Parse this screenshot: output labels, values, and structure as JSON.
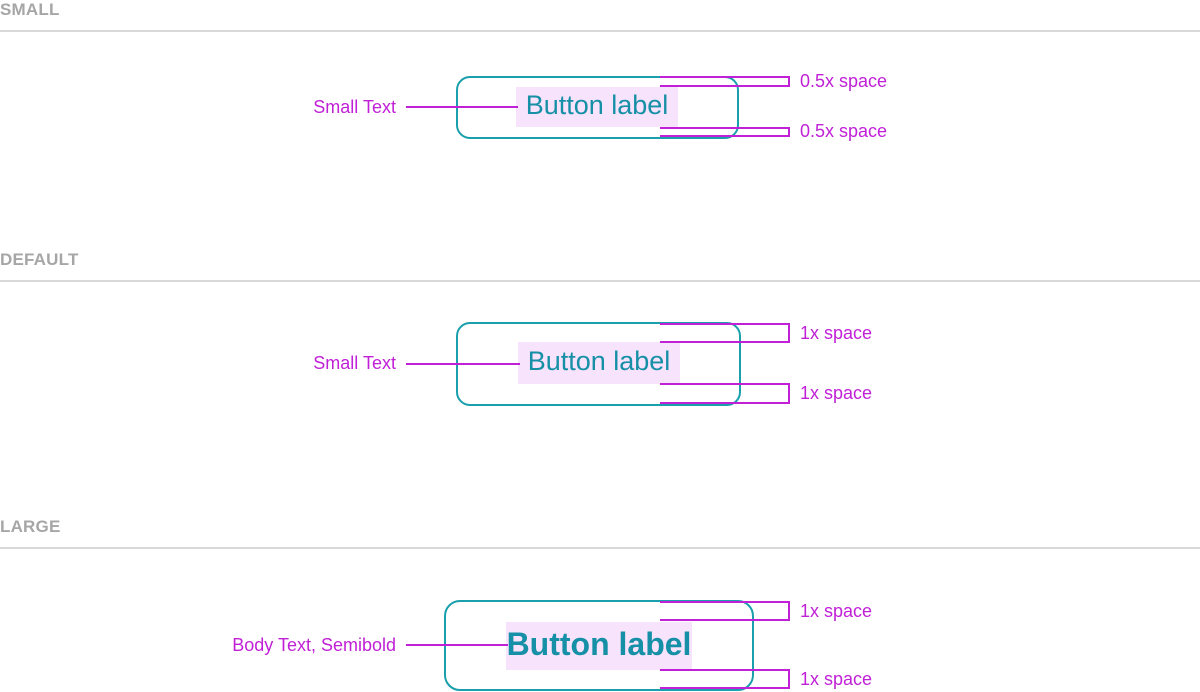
{
  "sections": [
    {
      "title": "SMALL",
      "font_annotation": "Small Text",
      "button_label": "Button label",
      "top_spacing": "0.5x space",
      "bottom_spacing": "0.5x space"
    },
    {
      "title": "DEFAULT",
      "font_annotation": "Small Text",
      "button_label": "Button label",
      "top_spacing": "1x space",
      "bottom_spacing": "1x space"
    },
    {
      "title": "LARGE",
      "font_annotation": "Body Text, Semibold",
      "button_label": "Button label",
      "top_spacing": "1x space",
      "bottom_spacing": "1x space"
    }
  ],
  "colors": {
    "annotation": "#c020d6",
    "button_border": "#1a9fac",
    "button_text": "#1690a6",
    "label_highlight": "#f7e3fb",
    "section_title": "#a6a6a6"
  }
}
